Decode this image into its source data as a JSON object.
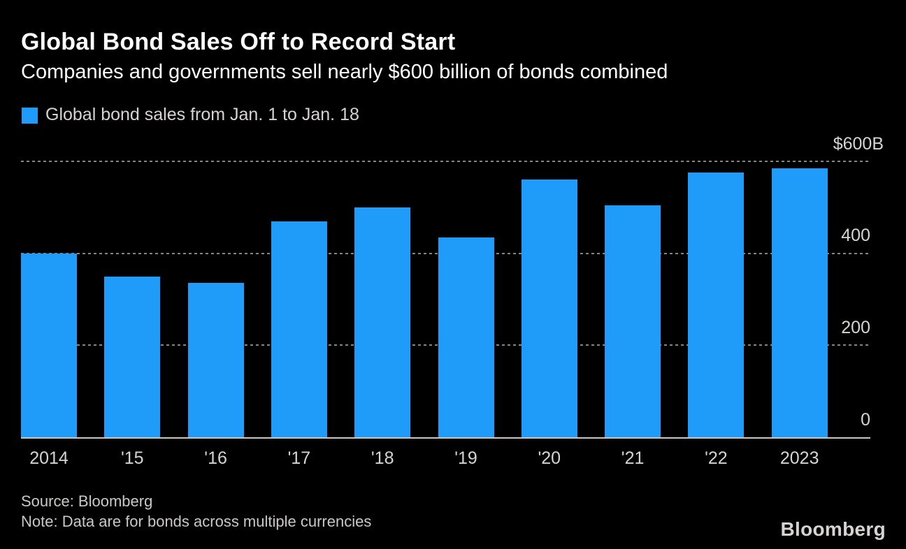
{
  "header": {
    "title": "Global Bond Sales Off to Record Start",
    "subtitle": "Companies and governments sell nearly $600 billion of bonds combined"
  },
  "legend": {
    "label": "Global bond sales from Jan. 1 to Jan. 18"
  },
  "chart_data": {
    "type": "bar",
    "title": "Global Bond Sales Off to Record Start",
    "subtitle": "Companies and governments sell nearly $600 billion of bonds combined",
    "legend_entries": [
      "Global bond sales from Jan. 1 to Jan. 18"
    ],
    "categories": [
      "2014",
      "'15",
      "'16",
      "'17",
      "'18",
      "'19",
      "'20",
      "'21",
      "'22",
      "2023"
    ],
    "values": [
      400,
      350,
      335,
      470,
      500,
      435,
      560,
      505,
      575,
      585
    ],
    "unit": "USD billions",
    "ylim": [
      0,
      600
    ],
    "yticks": [
      600,
      400,
      200,
      0
    ],
    "ytick_labels": [
      "$600B",
      "400",
      "200",
      "0"
    ],
    "grid": "horizontal dashed, ticks labeled on right, zero axis solid",
    "legend_position": "top-left",
    "bar_color": "#1f9bfa"
  },
  "footer": {
    "source": "Source: Bloomberg",
    "note": "Note: Data are for bonds across multiple currencies",
    "logo": "Bloomberg"
  },
  "colors": {
    "background": "#000000",
    "bar": "#1f9bfa",
    "gridline": "#858585",
    "axis_line": "#cbc6c0",
    "text_strong": "#ffffff",
    "text_soft": "#d6d4d1",
    "text_dim": "#cac8c5"
  }
}
